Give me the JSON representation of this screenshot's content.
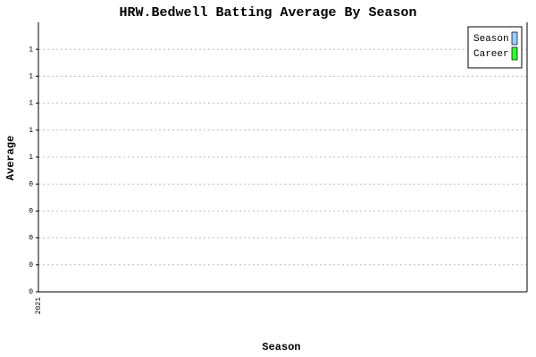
{
  "chart_data": {
    "type": "bar",
    "title": "HRW.Bedwell Batting Average By Season",
    "x_label": "Season",
    "y_label": "Average",
    "categories": [
      "2021"
    ],
    "series": [
      {
        "name": "Season",
        "color": "#99ccff",
        "values": [
          0
        ]
      },
      {
        "name": "Career",
        "color": "#33ff33",
        "values": [
          0
        ]
      }
    ],
    "ylim": [
      0,
      1.0
    ],
    "yticks": [
      0,
      {
        "value": 0.1,
        "label": "0"
      },
      {
        "value": 0.2,
        "label": "0"
      },
      {
        "value": 0.3,
        "label": "0"
      },
      {
        "value": 0.4,
        "label": "0"
      },
      {
        "value": 0.5,
        "label": "1"
      },
      {
        "value": 0.6,
        "label": "1"
      },
      {
        "value": 0.7,
        "label": "1"
      },
      {
        "value": 0.8,
        "label": "1"
      },
      {
        "value": 0.9,
        "label": "1"
      }
    ],
    "grid": true,
    "legend": "top-right"
  }
}
